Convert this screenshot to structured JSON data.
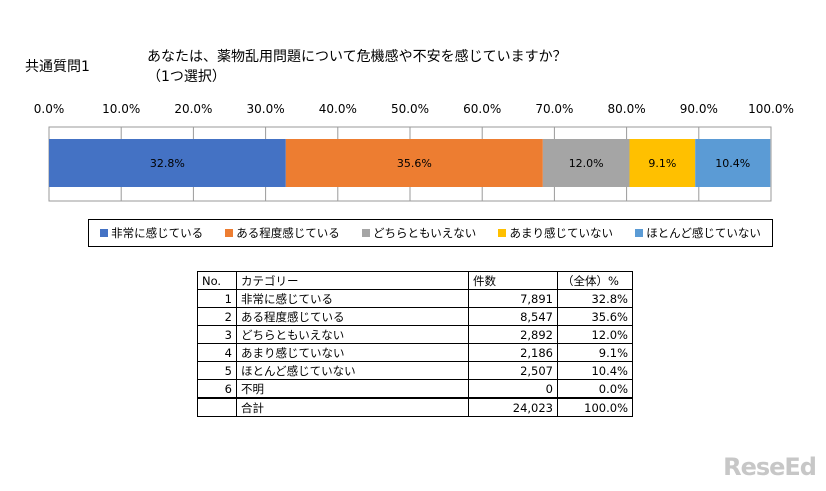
{
  "header": {
    "question_label": "共通質問1",
    "question_line1": "あなたは、薬物乱用問題について危機感や不安を感じていますか？",
    "question_line2": "（1つ選択）"
  },
  "chart_data": {
    "type": "bar",
    "orientation": "horizontal-stacked-100",
    "xlim": [
      0,
      100
    ],
    "tick_labels": [
      "0.0%",
      "10.0%",
      "20.0%",
      "30.0%",
      "40.0%",
      "50.0%",
      "60.0%",
      "70.0%",
      "80.0%",
      "90.0%",
      "100.0%"
    ],
    "grid": true,
    "legend_position": "bottom",
    "series": [
      {
        "name": "非常に感じている",
        "value": 32.8,
        "label": "32.8%",
        "color": "#4472c4"
      },
      {
        "name": "ある程度感じている",
        "value": 35.6,
        "label": "35.6%",
        "color": "#ed7d31"
      },
      {
        "name": "どちらともいえない",
        "value": 12.0,
        "label": "12.0%",
        "color": "#a5a5a5"
      },
      {
        "name": "あまり感じていない",
        "value": 9.1,
        "label": "9.1%",
        "color": "#ffc000"
      },
      {
        "name": "ほとんど感じていない",
        "value": 10.4,
        "label": "10.4%",
        "color": "#5b9bd5"
      }
    ]
  },
  "table": {
    "headers": [
      "No.",
      "カテゴリー",
      "件数",
      "（全体）%"
    ],
    "rows": [
      [
        "1",
        "非常に感じている",
        "7,891",
        "32.8%"
      ],
      [
        "2",
        "ある程度感じている",
        "8,547",
        "35.6%"
      ],
      [
        "3",
        "どちらともいえない",
        "2,892",
        "12.0%"
      ],
      [
        "4",
        "あまり感じていない",
        "2,186",
        "9.1%"
      ],
      [
        "5",
        "ほとんど感じていない",
        "2,507",
        "10.4%"
      ],
      [
        "6",
        "不明",
        "0",
        "0.0%"
      ]
    ],
    "total": [
      "",
      "合計",
      "24,023",
      "100.0%"
    ]
  },
  "logo": "ReseEd"
}
